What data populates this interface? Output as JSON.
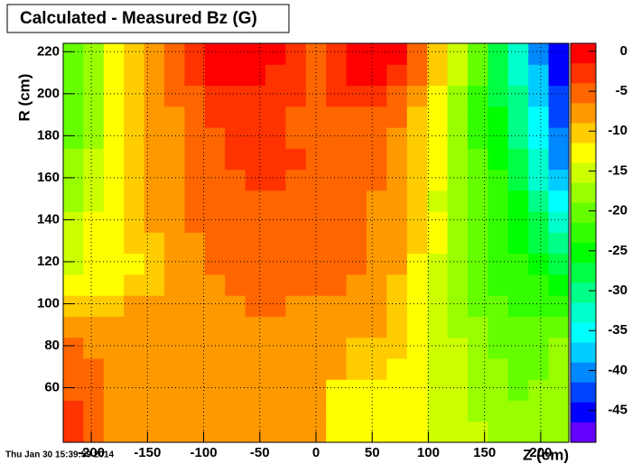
{
  "chart_data": {
    "type": "heatmap",
    "title": "Calculated - Measured Bz (G)",
    "x_label": "Z (cm)",
    "y_label": "R (cm)",
    "timestamp": "Thu Jan 30 15:39:59 2014",
    "xlim": [
      -225,
      225
    ],
    "ylim": [
      34,
      224
    ],
    "zlim": [
      -49,
      1
    ],
    "xticks": [
      -200,
      -150,
      -100,
      -50,
      0,
      50,
      100,
      150,
      200
    ],
    "yticks": [
      60,
      80,
      100,
      120,
      140,
      160,
      180,
      200,
      220
    ],
    "zticks": [
      0,
      -5,
      -10,
      -15,
      -20,
      -25,
      -30,
      -35,
      -40,
      -45
    ],
    "grid": true,
    "colors": [
      "#ff0000",
      "#ff3300",
      "#ff6600",
      "#ff9900",
      "#ffcc00",
      "#ffff00",
      "#ccff00",
      "#99ff00",
      "#66ff00",
      "#33ff00",
      "#00ff00",
      "#00ff44",
      "#00ff88",
      "#00ffcc",
      "#00ffff",
      "#00ccff",
      "#0088ff",
      "#0044ff",
      "#0000ff",
      "#6600ff"
    ],
    "xbins": [
      -225,
      -207,
      -189,
      -171,
      -153,
      -135,
      -117,
      -99,
      -81,
      -63,
      -45,
      -27,
      -9,
      9,
      27,
      45,
      63,
      81,
      99,
      117,
      135,
      153,
      171,
      189,
      207,
      225
    ],
    "ybins": [
      34,
      44,
      54,
      64,
      74,
      84,
      94,
      104,
      114,
      124,
      134,
      144,
      154,
      164,
      174,
      184,
      194,
      204,
      214,
      224
    ],
    "z": [
      [
        -3,
        -5,
        -8,
        -8,
        -8,
        -8,
        -8,
        -8,
        -8,
        -8,
        -8,
        -8,
        -8,
        -13,
        -13,
        -13,
        -13,
        -13,
        -15,
        -15,
        -15,
        -17,
        -17,
        -17,
        -17
      ],
      [
        -3,
        -5,
        -8,
        -8,
        -8,
        -8,
        -8,
        -8,
        -8,
        -8,
        -8,
        -8,
        -8,
        -13,
        -13,
        -13,
        -13,
        -13,
        -15,
        -15,
        -17,
        -17,
        -17,
        -17,
        -17
      ],
      [
        -5,
        -5,
        -8,
        -8,
        -8,
        -8,
        -8,
        -8,
        -8,
        -8,
        -8,
        -8,
        -8,
        -13,
        -13,
        -13,
        -13,
        -13,
        -15,
        -15,
        -17,
        -17,
        -20,
        -17,
        -17
      ],
      [
        -5,
        -5,
        -8,
        -8,
        -8,
        -8,
        -8,
        -8,
        -8,
        -8,
        -8,
        -8,
        -8,
        -8,
        -10,
        -10,
        -13,
        -13,
        -15,
        -15,
        -17,
        -17,
        -20,
        -20,
        -17
      ],
      [
        -5,
        -8,
        -8,
        -8,
        -8,
        -8,
        -8,
        -8,
        -8,
        -8,
        -8,
        -8,
        -8,
        -8,
        -10,
        -10,
        -10,
        -13,
        -15,
        -15,
        -17,
        -20,
        -20,
        -20,
        -17
      ],
      [
        -8,
        -8,
        -8,
        -8,
        -8,
        -8,
        -8,
        -8,
        -8,
        -8,
        -8,
        -8,
        -8,
        -8,
        -8,
        -8,
        -10,
        -13,
        -15,
        -17,
        -17,
        -20,
        -20,
        -20,
        -20
      ],
      [
        -10,
        -10,
        -10,
        -8,
        -8,
        -8,
        -8,
        -8,
        -8,
        -5,
        -5,
        -8,
        -8,
        -8,
        -8,
        -8,
        -10,
        -13,
        -15,
        -17,
        -20,
        -20,
        -22,
        -22,
        -22
      ],
      [
        -13,
        -13,
        -13,
        -10,
        -10,
        -8,
        -8,
        -8,
        -5,
        -5,
        -5,
        -5,
        -5,
        -5,
        -8,
        -8,
        -10,
        -13,
        -15,
        -17,
        -20,
        -22,
        -22,
        -22,
        -25
      ],
      [
        -15,
        -13,
        -13,
        -13,
        -10,
        -8,
        -8,
        -5,
        -5,
        -5,
        -5,
        -5,
        -5,
        -5,
        -5,
        -8,
        -8,
        -13,
        -15,
        -17,
        -20,
        -22,
        -22,
        -25,
        -27
      ],
      [
        -15,
        -13,
        -13,
        -10,
        -10,
        -8,
        -8,
        -5,
        -5,
        -5,
        -5,
        -5,
        -5,
        -5,
        -5,
        -8,
        -8,
        -10,
        -13,
        -17,
        -20,
        -22,
        -25,
        -27,
        -30
      ],
      [
        -15,
        -13,
        -13,
        -10,
        -8,
        -8,
        -5,
        -5,
        -5,
        -5,
        -5,
        -5,
        -5,
        -5,
        -5,
        -8,
        -8,
        -10,
        -13,
        -17,
        -20,
        -22,
        -25,
        -27,
        -32
      ],
      [
        -17,
        -15,
        -13,
        -10,
        -8,
        -8,
        -5,
        -5,
        -5,
        -5,
        -5,
        -5,
        -5,
        -5,
        -5,
        -8,
        -8,
        -10,
        -15,
        -17,
        -20,
        -22,
        -25,
        -30,
        -35
      ],
      [
        -17,
        -15,
        -13,
        -10,
        -8,
        -8,
        -5,
        -5,
        -5,
        -3,
        -3,
        -5,
        -5,
        -5,
        -5,
        -5,
        -8,
        -10,
        -13,
        -17,
        -20,
        -22,
        -27,
        -32,
        -37
      ],
      [
        -17,
        -15,
        -13,
        -10,
        -8,
        -8,
        -5,
        -5,
        -3,
        -3,
        -3,
        -3,
        -5,
        -5,
        -5,
        -5,
        -8,
        -10,
        -13,
        -17,
        -20,
        -25,
        -27,
        -32,
        -40
      ],
      [
        -20,
        -17,
        -13,
        -10,
        -8,
        -8,
        -5,
        -5,
        -3,
        -3,
        -3,
        -5,
        -5,
        -5,
        -5,
        -5,
        -8,
        -10,
        -13,
        -17,
        -22,
        -25,
        -30,
        -35,
        -40
      ],
      [
        -20,
        -17,
        -13,
        -10,
        -8,
        -8,
        -5,
        -3,
        -3,
        -3,
        -3,
        -5,
        -5,
        -5,
        -5,
        -5,
        -5,
        -10,
        -13,
        -17,
        -22,
        -25,
        -30,
        -35,
        -42
      ],
      [
        -20,
        -17,
        -13,
        -10,
        -8,
        -5,
        -5,
        -3,
        -3,
        -3,
        -3,
        -3,
        -5,
        -3,
        -3,
        -3,
        -5,
        -8,
        -13,
        -17,
        -22,
        -27,
        -30,
        -37,
        -42
      ],
      [
        -20,
        -17,
        -13,
        -10,
        -8,
        -5,
        -3,
        0,
        0,
        0,
        -3,
        -3,
        -5,
        -3,
        0,
        0,
        -3,
        -5,
        -10,
        -15,
        -20,
        -27,
        -32,
        -37,
        -45
      ],
      [
        -20,
        -17,
        -13,
        -10,
        -8,
        -5,
        -3,
        0,
        0,
        0,
        0,
        -3,
        -5,
        -3,
        0,
        0,
        0,
        -5,
        -10,
        -15,
        -20,
        -27,
        -32,
        -40,
        -45
      ]
    ]
  }
}
